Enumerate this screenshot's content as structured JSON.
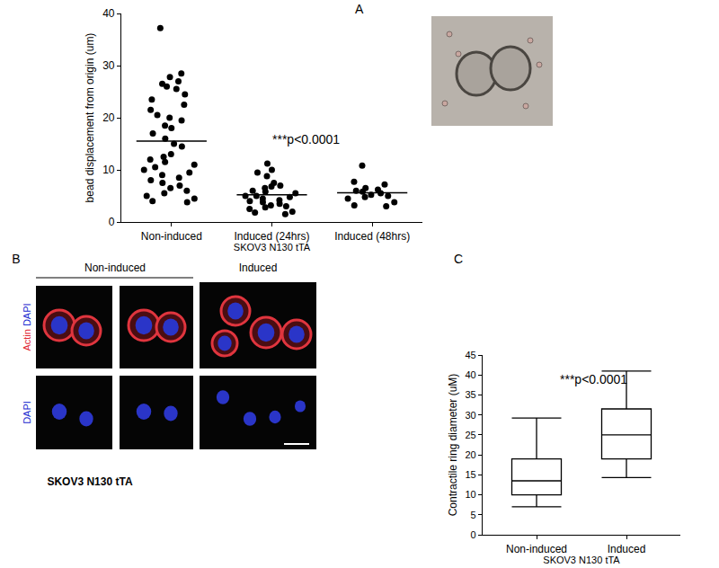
{
  "chart_data": [
    {
      "label": "A",
      "type": "scatter",
      "categories": [
        "Non-induced",
        "Induced (24hrs)",
        "Induced (48hrs)"
      ],
      "values": [
        [
          37.2,
          28.5,
          27.8,
          27,
          26.5,
          26,
          25.5,
          24.5,
          23.5,
          22.5,
          21.5,
          20.5,
          20,
          19.5,
          18.5,
          18,
          17,
          16,
          15,
          14.5,
          13,
          12.5,
          12,
          11.5,
          11,
          10.5,
          10,
          9.5,
          9,
          8.5,
          8,
          7.5,
          7,
          6.5,
          6,
          5.5,
          5,
          4.5,
          4,
          3.8
        ],
        [
          11.2,
          10,
          9.5,
          8.8,
          7.5,
          7,
          6.8,
          6.5,
          6,
          5.8,
          5.5,
          5,
          5,
          4.8,
          4.5,
          4.2,
          4,
          3.8,
          3.5,
          3.2,
          3,
          2.8,
          2.5,
          2,
          1.8,
          1.5
        ],
        [
          10.8,
          7.7,
          7.2,
          6.5,
          6.2,
          6,
          5.8,
          5.5,
          5.2,
          5,
          4.8,
          4.5,
          3.8,
          3.2,
          3
        ]
      ],
      "means": [
        15.5,
        5.2,
        5.6
      ],
      "color": "#000000",
      "marker": "circle",
      "x_label": "SKOV3 N130 tTA",
      "y_label": "bead displacement from origin (um)",
      "ylim": [
        0,
        40
      ],
      "yticks": [
        0,
        10,
        20,
        30,
        40
      ],
      "annotations": [
        "***p<0.0001"
      ]
    },
    {
      "label": "C",
      "type": "box",
      "categories": [
        "Non-induced",
        "Induced"
      ],
      "boxes": [
        {
          "min": 7,
          "q1": 10,
          "median": 13.5,
          "q3": 19,
          "max": 29.2
        },
        {
          "min": 14.3,
          "q1": 19,
          "median": 25,
          "q3": 31.5,
          "max": 41
        }
      ],
      "color": "#000000",
      "x_label": "SKOV3 N130 tTA",
      "y_label": "Contractile ring diameter (uM)",
      "ylim": [
        0,
        45
      ],
      "yticks": [
        0,
        5,
        10,
        15,
        20,
        25,
        30,
        35,
        40,
        45
      ],
      "annotations": [
        "***p<0.0001"
      ]
    }
  ],
  "micrographs": {
    "label": "B",
    "column_titles": [
      "Non-induced",
      "Induced"
    ],
    "row_labels": [
      [
        "Actin",
        "DAPI"
      ],
      [
        "DAPI"
      ]
    ],
    "caption": "SKOV3 N130 tTA"
  }
}
